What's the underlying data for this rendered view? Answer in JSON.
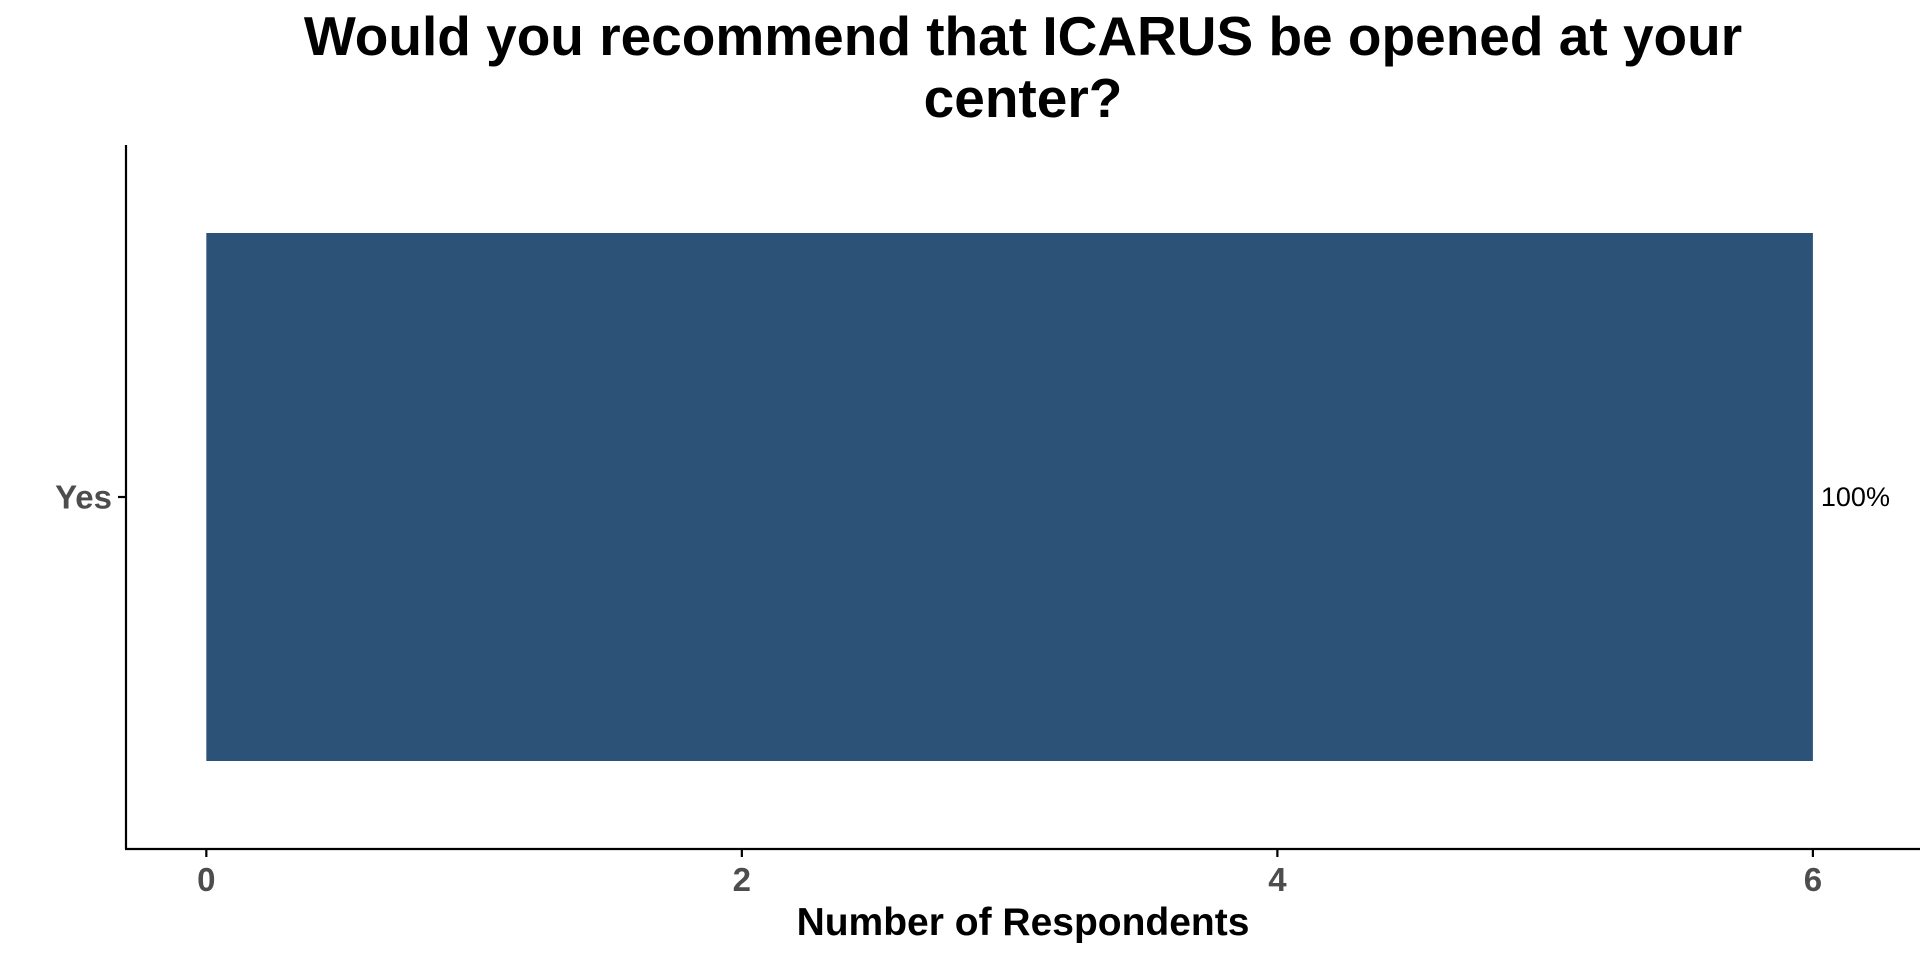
{
  "chart_data": {
    "type": "bar",
    "orientation": "horizontal",
    "title_lines": [
      "Would you recommend that ICARUS be opened at your",
      "center?"
    ],
    "xlabel": "Number of Respondents",
    "ylabel": "",
    "categories": [
      "Yes"
    ],
    "values": [
      6
    ],
    "data_labels": [
      "100%"
    ],
    "xlim": [
      -0.3,
      6.4
    ],
    "xticks": [
      0,
      2,
      4,
      6
    ],
    "xtick_labels": [
      "0",
      "2",
      "4",
      "6"
    ],
    "grid": false,
    "legend": "none",
    "bar_color": "#2c5277"
  }
}
